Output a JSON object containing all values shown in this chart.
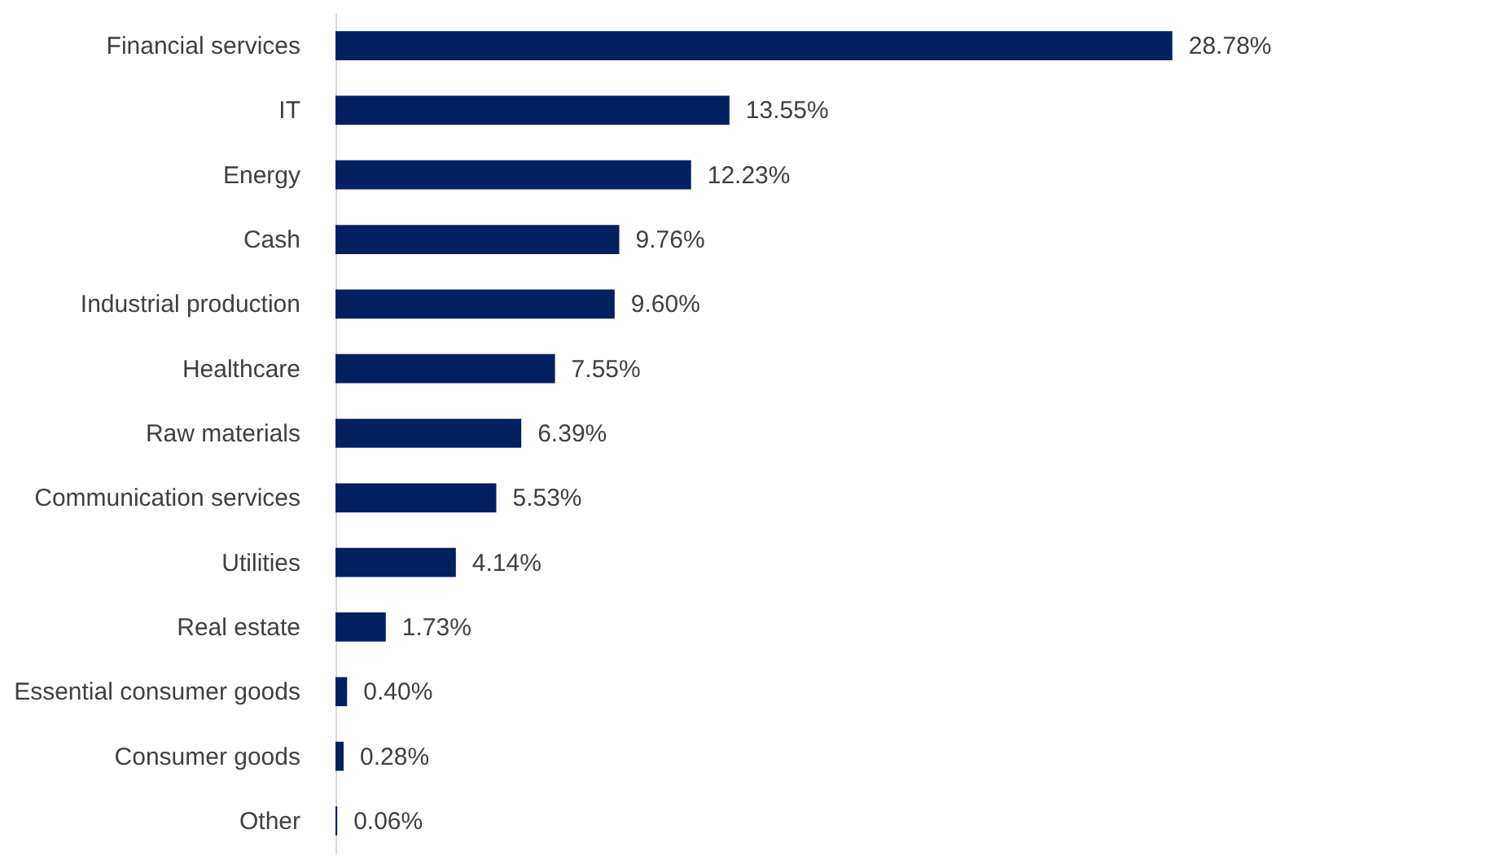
{
  "chart_data": {
    "type": "bar",
    "orientation": "horizontal",
    "categories": [
      "Financial services",
      "IT",
      "Energy",
      "Cash",
      "Industrial production",
      "Healthcare",
      "Raw materials",
      "Communication services",
      "Utilities",
      "Real estate",
      "Essential consumer goods",
      "Consumer goods",
      "Other"
    ],
    "values": [
      28.78,
      13.55,
      12.23,
      9.76,
      9.6,
      7.55,
      6.39,
      5.53,
      4.14,
      1.73,
      0.4,
      0.28,
      0.06
    ],
    "value_labels": [
      "28.78%",
      "13.55%",
      "12.23%",
      "9.76%",
      "9.60%",
      "7.55%",
      "6.39%",
      "5.53%",
      "4.14%",
      "1.73%",
      "0.40%",
      "0.28%",
      "0.06%"
    ],
    "color": "#002060",
    "tick_labels": "y"
  }
}
